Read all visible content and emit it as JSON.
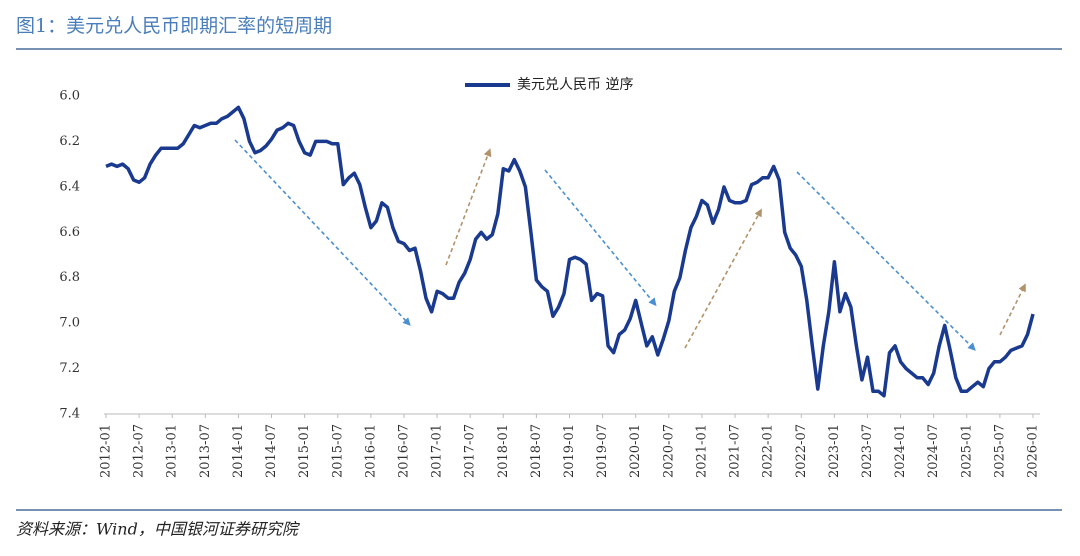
{
  "chart_data": {
    "type": "line",
    "title": "图1：美元兑人民币即期汇率的短周期",
    "source": "资料来源：Wind，中国银河证券研究院",
    "y_inverted": true,
    "ylim": [
      6.0,
      7.4
    ],
    "yticks": [
      {
        "value": 6.0,
        "label": "6.0"
      },
      {
        "value": 6.2,
        "label": "6.2"
      },
      {
        "value": 6.4,
        "label": "6.4"
      },
      {
        "value": 6.6,
        "label": "6.6"
      },
      {
        "value": 6.8,
        "label": "6.8"
      },
      {
        "value": 7.0,
        "label": "7.0"
      },
      {
        "value": 7.2,
        "label": "7.2"
      },
      {
        "value": 7.4,
        "label": "7.4"
      }
    ],
    "xlim": [
      "2012-01",
      "2026-01"
    ],
    "xticks": [
      "2012-01",
      "2012-07",
      "2013-01",
      "2013-07",
      "2014-01",
      "2014-07",
      "2015-01",
      "2015-07",
      "2016-01",
      "2016-07",
      "2017-01",
      "2017-07",
      "2018-01",
      "2018-07",
      "2019-01",
      "2019-07",
      "2020-01",
      "2020-07",
      "2021-01",
      "2021-07",
      "2022-01",
      "2022-07",
      "2023-01",
      "2023-07",
      "2024-01",
      "2024-07",
      "2025-01",
      "2025-07",
      "2026-01"
    ],
    "x": [
      "2012-01",
      "2012-02",
      "2012-03",
      "2012-04",
      "2012-05",
      "2012-06",
      "2012-07",
      "2012-08",
      "2012-09",
      "2012-10",
      "2012-11",
      "2012-12",
      "2013-01",
      "2013-02",
      "2013-03",
      "2013-04",
      "2013-05",
      "2013-06",
      "2013-07",
      "2013-08",
      "2013-09",
      "2013-10",
      "2013-11",
      "2013-12",
      "2014-01",
      "2014-02",
      "2014-03",
      "2014-04",
      "2014-05",
      "2014-06",
      "2014-07",
      "2014-08",
      "2014-09",
      "2014-10",
      "2014-11",
      "2014-12",
      "2015-01",
      "2015-02",
      "2015-03",
      "2015-04",
      "2015-05",
      "2015-06",
      "2015-07",
      "2015-08",
      "2015-09",
      "2015-10",
      "2015-11",
      "2015-12",
      "2016-01",
      "2016-02",
      "2016-03",
      "2016-04",
      "2016-05",
      "2016-06",
      "2016-07",
      "2016-08",
      "2016-09",
      "2016-10",
      "2016-11",
      "2016-12",
      "2017-01",
      "2017-02",
      "2017-03",
      "2017-04",
      "2017-05",
      "2017-06",
      "2017-07",
      "2017-08",
      "2017-09",
      "2017-10",
      "2017-11",
      "2017-12",
      "2018-01",
      "2018-02",
      "2018-03",
      "2018-04",
      "2018-05",
      "2018-06",
      "2018-07",
      "2018-08",
      "2018-09",
      "2018-10",
      "2018-11",
      "2018-12",
      "2019-01",
      "2019-02",
      "2019-03",
      "2019-04",
      "2019-05",
      "2019-06",
      "2019-07",
      "2019-08",
      "2019-09",
      "2019-10",
      "2019-11",
      "2019-12",
      "2020-01",
      "2020-02",
      "2020-03",
      "2020-04",
      "2020-05",
      "2020-06",
      "2020-07",
      "2020-08",
      "2020-09",
      "2020-10",
      "2020-11",
      "2020-12",
      "2021-01",
      "2021-02",
      "2021-03",
      "2021-04",
      "2021-05",
      "2021-06",
      "2021-07",
      "2021-08",
      "2021-09",
      "2021-10",
      "2021-11",
      "2021-12",
      "2022-01",
      "2022-02",
      "2022-03",
      "2022-04",
      "2022-05",
      "2022-06",
      "2022-07",
      "2022-08",
      "2022-09",
      "2022-10",
      "2022-11",
      "2022-12",
      "2023-01",
      "2023-02",
      "2023-03",
      "2023-04",
      "2023-05",
      "2023-06",
      "2023-07",
      "2023-08",
      "2023-09",
      "2023-10",
      "2023-11",
      "2023-12",
      "2024-01",
      "2024-02",
      "2024-03",
      "2024-04",
      "2024-05",
      "2024-06",
      "2024-07",
      "2024-08",
      "2024-09",
      "2024-10",
      "2024-11",
      "2024-12",
      "2025-01",
      "2025-02",
      "2025-03",
      "2025-04",
      "2025-05",
      "2025-06",
      "2025-07",
      "2025-08",
      "2025-09",
      "2025-10",
      "2025-11",
      "2025-12",
      "2026-01"
    ],
    "series": [
      {
        "name": "美元兑人民币 逆序",
        "color": "#1a3a8f",
        "values": [
          6.31,
          6.3,
          6.31,
          6.3,
          6.32,
          6.37,
          6.38,
          6.36,
          6.3,
          6.26,
          6.23,
          6.23,
          6.23,
          6.23,
          6.21,
          6.17,
          6.13,
          6.14,
          6.13,
          6.12,
          6.12,
          6.1,
          6.09,
          6.07,
          6.05,
          6.1,
          6.2,
          6.25,
          6.24,
          6.22,
          6.19,
          6.15,
          6.14,
          6.12,
          6.13,
          6.2,
          6.25,
          6.26,
          6.2,
          6.2,
          6.2,
          6.21,
          6.21,
          6.39,
          6.36,
          6.34,
          6.39,
          6.49,
          6.58,
          6.55,
          6.47,
          6.49,
          6.58,
          6.64,
          6.65,
          6.68,
          6.67,
          6.77,
          6.89,
          6.95,
          6.86,
          6.87,
          6.89,
          6.89,
          6.82,
          6.78,
          6.72,
          6.63,
          6.6,
          6.63,
          6.61,
          6.52,
          6.32,
          6.33,
          6.28,
          6.33,
          6.4,
          6.6,
          6.81,
          6.84,
          6.86,
          6.97,
          6.93,
          6.87,
          6.72,
          6.71,
          6.72,
          6.74,
          6.9,
          6.87,
          6.88,
          7.1,
          7.13,
          7.05,
          7.03,
          6.98,
          6.9,
          7.0,
          7.1,
          7.06,
          7.14,
          7.07,
          6.99,
          6.86,
          6.8,
          6.68,
          6.58,
          6.53,
          6.46,
          6.48,
          6.56,
          6.5,
          6.4,
          6.46,
          6.47,
          6.47,
          6.46,
          6.39,
          6.38,
          6.36,
          6.36,
          6.31,
          6.37,
          6.6,
          6.67,
          6.7,
          6.75,
          6.9,
          7.1,
          7.29,
          7.1,
          6.95,
          6.73,
          6.95,
          6.87,
          6.93,
          7.1,
          7.25,
          7.15,
          7.3,
          7.3,
          7.32,
          7.13,
          7.1,
          7.17,
          7.2,
          7.22,
          7.24,
          7.24,
          7.27,
          7.22,
          7.1,
          7.01,
          7.12,
          7.24,
          7.3,
          7.3,
          7.28,
          7.26,
          7.28,
          7.2,
          7.17,
          7.17,
          7.15,
          7.12,
          7.11,
          7.1,
          7.05,
          6.96
        ]
      }
    ]
  }
}
